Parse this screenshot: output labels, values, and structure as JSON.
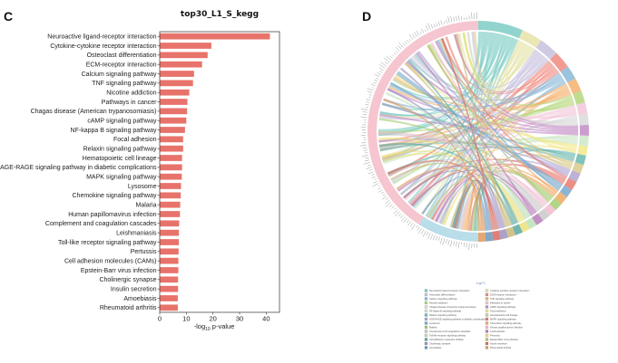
{
  "panels": {
    "left_letter": "C",
    "right_letter": "D"
  },
  "chart_data": [
    {
      "type": "bar",
      "orientation": "horizontal",
      "title": "top30_L1_S_kegg",
      "xlabel": "-log10 p-value",
      "xlabel_parts": {
        "prefix": "-log",
        "sub": "10",
        "suffix": " p-value"
      },
      "ylabel": "",
      "xlim": [
        0,
        45
      ],
      "xticks": [
        0,
        10,
        20,
        30,
        40
      ],
      "grid": false,
      "bar_color": "#e8736b",
      "categories": [
        "Neuroactive ligand-receptor interaction",
        "Cytokine-cytokine receptor interaction",
        "Osteoclast differentiation",
        "ECM-receptor interaction",
        "Calcium signaling pathway",
        "TNF signaling pathway",
        "Nicotine addiction",
        "Pathways in cancer",
        "Chagas disease (American trypanosomiasis)",
        "cAMP signaling pathway",
        "NF-kappa B signaling pathway",
        "Focal adhesion",
        "Relaxin signaling pathway",
        "Hematopoietic cell lineage",
        "AGE-RAGE signaling pathway in diabetic complications",
        "MAPK signaling pathway",
        "Lysosome",
        "Chemokine signaling pathway",
        "Malaria",
        "Human papillomavirus infection",
        "Complement and coagulation cascades",
        "Leishmaniasis",
        "Toll-like receptor signaling pathway",
        "Pertussis",
        "Cell adhesion molecules (CAMs)",
        "Epstein-Barr virus infection",
        "Cholinergic synapse",
        "Insulin secretion",
        "Amoebiasis",
        "Rheumatoid arthritis"
      ],
      "values": [
        41.4,
        19.4,
        18.0,
        15.9,
        12.9,
        12.5,
        11.1,
        10.4,
        10.3,
        10.0,
        9.5,
        8.8,
        8.8,
        8.4,
        8.4,
        8.3,
        8.0,
        7.9,
        7.7,
        7.6,
        7.3,
        7.2,
        7.2,
        7.1,
        7.0,
        7.0,
        6.9,
        6.9,
        6.8,
        6.8
      ]
    },
    {
      "type": "chord",
      "title": "",
      "legend_title": "logFC",
      "legend_placement": "bottom",
      "pathway_colors": [
        "#7ecdc4",
        "#e6e3a8",
        "#c7c0dd",
        "#f08a80",
        "#8ab8d8",
        "#f5b06c",
        "#b5d77b",
        "#f2c6d8",
        "#d9d9d9",
        "#c28bc4",
        "#cde8c8",
        "#f2e88a",
        "#6cb8b0",
        "#d9c98a",
        "#b0a3d0",
        "#e77a6e",
        "#78a8cc",
        "#f0a860",
        "#a4cc70",
        "#f0bcd0",
        "#c8c8c8",
        "#b87cb8",
        "#bce0b8",
        "#ebe07a",
        "#5aa8a0",
        "#c8b878",
        "#9c90c0",
        "#d86a60",
        "#6c98bc",
        "#e0985a"
      ],
      "gene_arc_color": "#f6c6d0",
      "gene_arc_secondary_color": "#b9dde9",
      "legend_left": [
        "Neuroactive ligand-receptor interaction",
        "Osteoclast differentiation",
        "Calcium signaling pathway",
        "Nicotine addiction",
        "Chagas disease (American trypanosomiasis)",
        "NF-kappa B signaling pathway",
        "Relaxin signaling pathway",
        "AGE-RAGE signaling pathway in diabetic complications",
        "Lysosome",
        "Malaria",
        "Complement and coagulation cascades",
        "Toll-like receptor signaling pathway",
        "Cell adhesion molecules (CAMs)",
        "Cholinergic synapse",
        "Amoebiasis"
      ],
      "legend_right": [
        "Cytokine-cytokine receptor interaction",
        "ECM-receptor interaction",
        "TNF signaling pathway",
        "Pathways in cancer",
        "cAMP signaling pathway",
        "Focal adhesion",
        "Hematopoietic cell lineage",
        "MAPK signaling pathway",
        "Chemokine signaling pathway",
        "Human papillomavirus infection",
        "Leishmaniasis",
        "Pertussis",
        "Epstein-Barr virus infection",
        "Insulin secretion",
        "Rheumatoid arthritis"
      ]
    }
  ]
}
